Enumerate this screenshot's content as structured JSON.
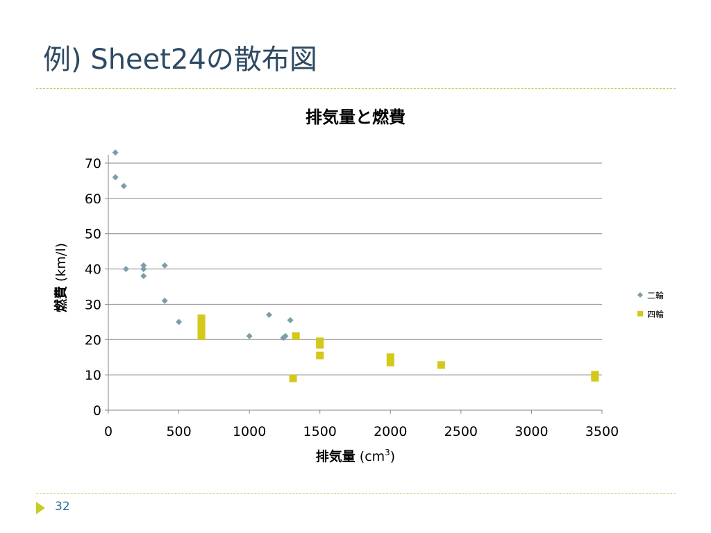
{
  "slide": {
    "title": "例) Sheet24の散布図",
    "page_number": "32"
  },
  "chart_data": {
    "type": "scatter",
    "title": "排気量と燃費",
    "xlabel": "排気量",
    "xlabel_unit": "(cm",
    "xlabel_unit_sup": "3",
    "xlabel_unit_close": ")",
    "ylabel": "燃費",
    "ylabel_unit": "(km/l)",
    "xlim": [
      0,
      3500
    ],
    "ylim": [
      0,
      70
    ],
    "x_ticks": [
      0,
      500,
      1000,
      1500,
      2000,
      2500,
      3000,
      3500
    ],
    "y_ticks": [
      0,
      10,
      20,
      30,
      40,
      50,
      60,
      70
    ],
    "grid": "horizontal",
    "legend_position": "right",
    "series": [
      {
        "name": "二輪",
        "marker": "diamond",
        "color": "#7b9ea8",
        "points": [
          [
            50,
            73
          ],
          [
            50,
            66
          ],
          [
            110,
            63.5
          ],
          [
            125,
            40
          ],
          [
            250,
            41
          ],
          [
            250,
            40
          ],
          [
            250,
            38
          ],
          [
            400,
            41
          ],
          [
            400,
            31
          ],
          [
            500,
            25
          ],
          [
            1000,
            21
          ],
          [
            1140,
            27
          ],
          [
            1240,
            20.5
          ],
          [
            1255,
            21
          ],
          [
            1290,
            25.5
          ]
        ]
      },
      {
        "name": "四輪",
        "marker": "square",
        "color": "#d4c81a",
        "points": [
          [
            660,
            26
          ],
          [
            660,
            25
          ],
          [
            660,
            24
          ],
          [
            660,
            23
          ],
          [
            660,
            22
          ],
          [
            660,
            21
          ],
          [
            1310,
            9
          ],
          [
            1330,
            21
          ],
          [
            1500,
            19.5
          ],
          [
            1500,
            18.5
          ],
          [
            1500,
            15.5
          ],
          [
            2000,
            15
          ],
          [
            2000,
            13.5
          ],
          [
            2360,
            12.8
          ],
          [
            3450,
            10
          ],
          [
            3450,
            9.2
          ]
        ]
      }
    ]
  }
}
